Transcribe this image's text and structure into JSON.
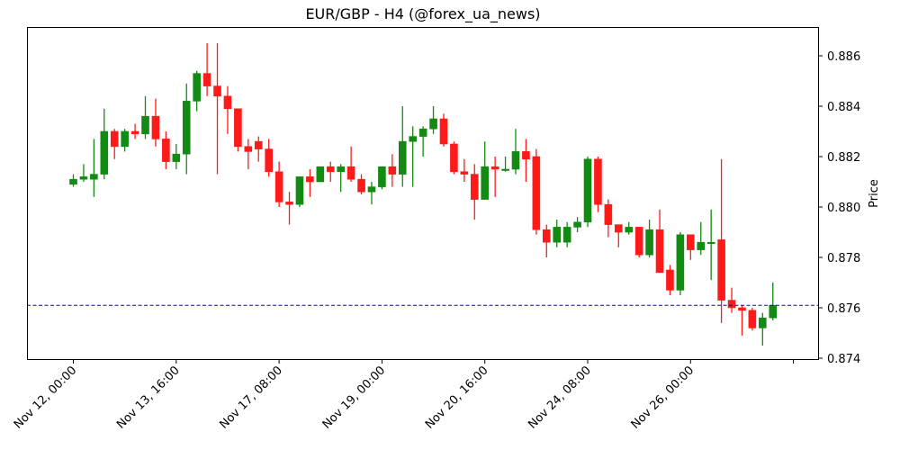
{
  "chart_data": {
    "type": "candlestick",
    "title": "EUR/GBP - H4 (@forex_ua_news)",
    "xlabel": "",
    "ylabel": "Price",
    "ylim": [
      0.8739,
      0.8871
    ],
    "yticks": [
      0.874,
      0.876,
      0.878,
      0.88,
      0.882,
      0.884,
      0.886
    ],
    "ytick_labels": [
      "0.874",
      "0.876",
      "0.878",
      "0.880",
      "0.882",
      "0.884",
      "0.886"
    ],
    "xtick_labels": [
      "Nov 12, 00:00",
      "Nov 13, 16:00",
      "Nov 17, 08:00",
      "Nov 19, 00:00",
      "Nov 20, 16:00",
      "Nov 24, 08:00",
      "Nov 26, 00:00",
      ""
    ],
    "xtick_candle_index": [
      0,
      10,
      20,
      30,
      40,
      50,
      60,
      70
    ],
    "y_axis_position": "right",
    "grid": false,
    "up_color": "#138a13",
    "down_color": "#ff1a1a",
    "reference_line": {
      "price": 0.8761,
      "color": "#0000ff",
      "style": "dashed"
    },
    "candles": [
      {
        "o": 0.8809,
        "h": 0.8813,
        "l": 0.8808,
        "c": 0.8811
      },
      {
        "o": 0.8811,
        "h": 0.8817,
        "l": 0.881,
        "c": 0.8812
      },
      {
        "o": 0.8811,
        "h": 0.8827,
        "l": 0.8804,
        "c": 0.8813
      },
      {
        "o": 0.8813,
        "h": 0.8839,
        "l": 0.8811,
        "c": 0.883
      },
      {
        "o": 0.883,
        "h": 0.8831,
        "l": 0.8819,
        "c": 0.8824
      },
      {
        "o": 0.8824,
        "h": 0.8831,
        "l": 0.8822,
        "c": 0.883
      },
      {
        "o": 0.883,
        "h": 0.8833,
        "l": 0.8827,
        "c": 0.8829
      },
      {
        "o": 0.8829,
        "h": 0.8844,
        "l": 0.8827,
        "c": 0.8836
      },
      {
        "o": 0.8836,
        "h": 0.8843,
        "l": 0.8824,
        "c": 0.8827
      },
      {
        "o": 0.8827,
        "h": 0.883,
        "l": 0.8815,
        "c": 0.8818
      },
      {
        "o": 0.8818,
        "h": 0.8825,
        "l": 0.8815,
        "c": 0.8821
      },
      {
        "o": 0.8821,
        "h": 0.8849,
        "l": 0.8813,
        "c": 0.8842
      },
      {
        "o": 0.8842,
        "h": 0.8854,
        "l": 0.8838,
        "c": 0.8853
      },
      {
        "o": 0.8853,
        "h": 0.8865,
        "l": 0.8844,
        "c": 0.8848
      },
      {
        "o": 0.8848,
        "h": 0.8865,
        "l": 0.8813,
        "c": 0.8844
      },
      {
        "o": 0.8844,
        "h": 0.8848,
        "l": 0.8829,
        "c": 0.8839
      },
      {
        "o": 0.8839,
        "h": 0.8839,
        "l": 0.8822,
        "c": 0.8824
      },
      {
        "o": 0.8824,
        "h": 0.8827,
        "l": 0.8815,
        "c": 0.8822
      },
      {
        "o": 0.8826,
        "h": 0.8828,
        "l": 0.8818,
        "c": 0.8823
      },
      {
        "o": 0.8823,
        "h": 0.8827,
        "l": 0.8812,
        "c": 0.8814
      },
      {
        "o": 0.8814,
        "h": 0.8818,
        "l": 0.88,
        "c": 0.8802
      },
      {
        "o": 0.8802,
        "h": 0.8806,
        "l": 0.8793,
        "c": 0.8801
      },
      {
        "o": 0.8801,
        "h": 0.8812,
        "l": 0.88,
        "c": 0.8812
      },
      {
        "o": 0.8812,
        "h": 0.8815,
        "l": 0.8804,
        "c": 0.881
      },
      {
        "o": 0.881,
        "h": 0.8816,
        "l": 0.881,
        "c": 0.8816
      },
      {
        "o": 0.8816,
        "h": 0.8818,
        "l": 0.881,
        "c": 0.8814
      },
      {
        "o": 0.8814,
        "h": 0.8817,
        "l": 0.8806,
        "c": 0.8816
      },
      {
        "o": 0.8816,
        "h": 0.8824,
        "l": 0.881,
        "c": 0.8811
      },
      {
        "o": 0.8811,
        "h": 0.8813,
        "l": 0.8805,
        "c": 0.8806
      },
      {
        "o": 0.8806,
        "h": 0.881,
        "l": 0.8801,
        "c": 0.8808
      },
      {
        "o": 0.8808,
        "h": 0.8816,
        "l": 0.8807,
        "c": 0.8816
      },
      {
        "o": 0.8816,
        "h": 0.8821,
        "l": 0.8808,
        "c": 0.8813
      },
      {
        "o": 0.8813,
        "h": 0.884,
        "l": 0.8808,
        "c": 0.8826
      },
      {
        "o": 0.8826,
        "h": 0.8832,
        "l": 0.8808,
        "c": 0.8828
      },
      {
        "o": 0.8828,
        "h": 0.8832,
        "l": 0.882,
        "c": 0.8831
      },
      {
        "o": 0.8831,
        "h": 0.884,
        "l": 0.8829,
        "c": 0.8835
      },
      {
        "o": 0.8835,
        "h": 0.8837,
        "l": 0.8824,
        "c": 0.8825
      },
      {
        "o": 0.8825,
        "h": 0.8826,
        "l": 0.8813,
        "c": 0.8814
      },
      {
        "o": 0.8814,
        "h": 0.8819,
        "l": 0.881,
        "c": 0.8813
      },
      {
        "o": 0.8813,
        "h": 0.8817,
        "l": 0.8795,
        "c": 0.8803
      },
      {
        "o": 0.8803,
        "h": 0.8826,
        "l": 0.8803,
        "c": 0.8816
      },
      {
        "o": 0.8816,
        "h": 0.882,
        "l": 0.8804,
        "c": 0.8815
      },
      {
        "o": 0.8815,
        "h": 0.882,
        "l": 0.8814,
        "c": 0.8815
      },
      {
        "o": 0.8815,
        "h": 0.8831,
        "l": 0.8813,
        "c": 0.8822
      },
      {
        "o": 0.8822,
        "h": 0.8827,
        "l": 0.881,
        "c": 0.8819
      },
      {
        "o": 0.882,
        "h": 0.8823,
        "l": 0.8789,
        "c": 0.8791
      },
      {
        "o": 0.8791,
        "h": 0.8793,
        "l": 0.878,
        "c": 0.8786
      },
      {
        "o": 0.8786,
        "h": 0.8795,
        "l": 0.8784,
        "c": 0.8792
      },
      {
        "o": 0.8786,
        "h": 0.8794,
        "l": 0.8784,
        "c": 0.8792
      },
      {
        "o": 0.8792,
        "h": 0.8796,
        "l": 0.879,
        "c": 0.8794
      },
      {
        "o": 0.8794,
        "h": 0.882,
        "l": 0.8792,
        "c": 0.8819
      },
      {
        "o": 0.8819,
        "h": 0.882,
        "l": 0.8798,
        "c": 0.8801
      },
      {
        "o": 0.8801,
        "h": 0.8803,
        "l": 0.8788,
        "c": 0.8793
      },
      {
        "o": 0.8793,
        "h": 0.8793,
        "l": 0.8784,
        "c": 0.879
      },
      {
        "o": 0.879,
        "h": 0.8794,
        "l": 0.8789,
        "c": 0.8792
      },
      {
        "o": 0.8792,
        "h": 0.8792,
        "l": 0.878,
        "c": 0.8781
      },
      {
        "o": 0.8781,
        "h": 0.8795,
        "l": 0.878,
        "c": 0.8791
      },
      {
        "o": 0.8791,
        "h": 0.8799,
        "l": 0.8774,
        "c": 0.8774
      },
      {
        "o": 0.8775,
        "h": 0.8777,
        "l": 0.8765,
        "c": 0.8767
      },
      {
        "o": 0.8767,
        "h": 0.879,
        "l": 0.8765,
        "c": 0.8789
      },
      {
        "o": 0.8789,
        "h": 0.8789,
        "l": 0.8779,
        "c": 0.8783
      },
      {
        "o": 0.8783,
        "h": 0.8794,
        "l": 0.8781,
        "c": 0.8786
      },
      {
        "o": 0.8786,
        "h": 0.8799,
        "l": 0.8771,
        "c": 0.8786
      },
      {
        "o": 0.8787,
        "h": 0.8819,
        "l": 0.8754,
        "c": 0.8763
      },
      {
        "o": 0.8763,
        "h": 0.8768,
        "l": 0.8758,
        "c": 0.876
      },
      {
        "o": 0.876,
        "h": 0.8761,
        "l": 0.8749,
        "c": 0.8759
      },
      {
        "o": 0.8759,
        "h": 0.876,
        "l": 0.8751,
        "c": 0.8752
      },
      {
        "o": 0.8752,
        "h": 0.8758,
        "l": 0.8745,
        "c": 0.8756
      },
      {
        "o": 0.8756,
        "h": 0.877,
        "l": 0.8755,
        "c": 0.8761
      }
    ]
  }
}
